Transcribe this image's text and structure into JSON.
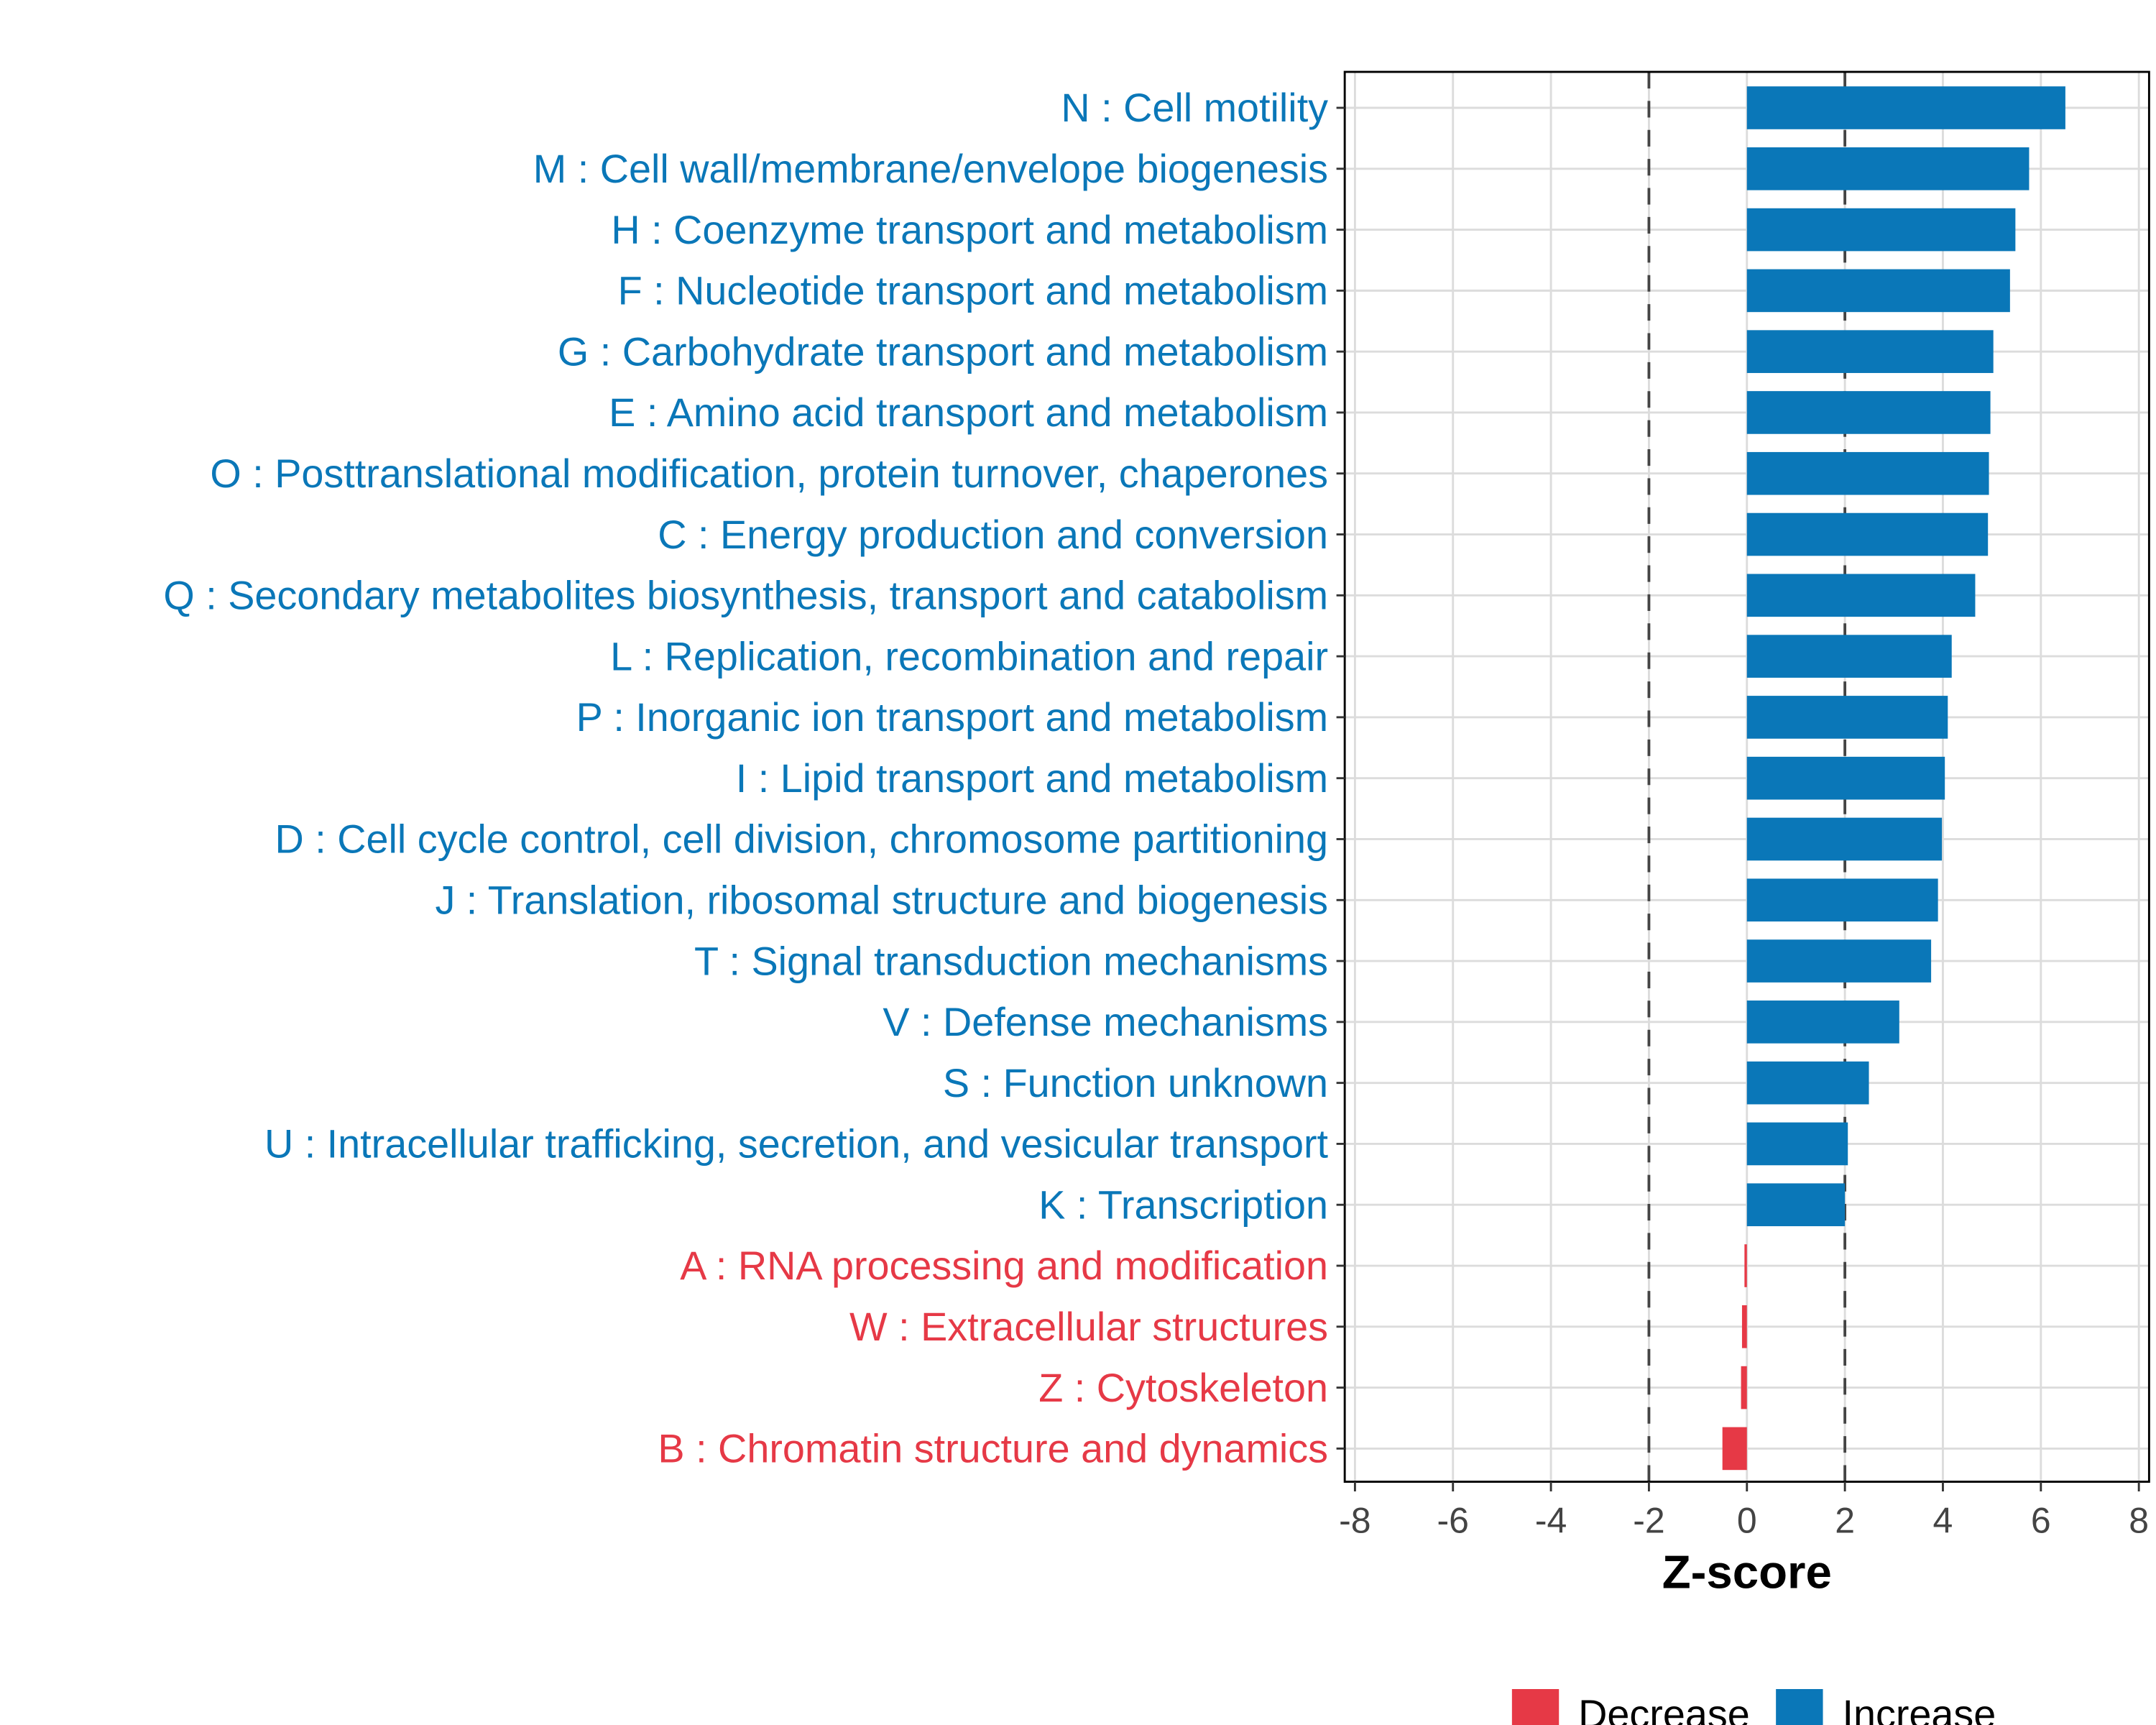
{
  "chart_data": {
    "type": "bar",
    "orientation": "horizontal",
    "title": "",
    "xlabel": "Z-score",
    "ylabel": "",
    "xlim": [
      -8.2,
      8.2
    ],
    "xticks": [
      -8,
      -6,
      -4,
      -2,
      0,
      2,
      4,
      6,
      8
    ],
    "reference_lines": [
      -2,
      2
    ],
    "grid": true,
    "legend": {
      "placement": "bottom",
      "entries": [
        {
          "label": "Decrease",
          "color": "#e63946"
        },
        {
          "label": "Increase",
          "color": "#0a77b8"
        }
      ]
    },
    "categories": [
      "N : Cell motility",
      "M : Cell wall/membrane/envelope biogenesis",
      "H : Coenzyme transport and metabolism",
      "F : Nucleotide transport and metabolism",
      "G : Carbohydrate transport and metabolism",
      "E : Amino acid transport and metabolism",
      "O : Posttranslational modification, protein turnover, chaperones",
      "C : Energy production and conversion",
      "Q : Secondary metabolites biosynthesis, transport and catabolism",
      "L : Replication, recombination and repair",
      "P : Inorganic ion transport and metabolism",
      "I : Lipid transport and metabolism",
      "D : Cell cycle control, cell division, chromosome partitioning",
      "J : Translation, ribosomal structure and biogenesis",
      "T : Signal transduction mechanisms",
      "V : Defense mechanisms",
      "S : Function unknown",
      "U : Intracellular trafficking, secretion, and vesicular transport",
      "K : Transcription",
      "A : RNA processing and modification",
      "W : Extracellular structures",
      "Z : Cytoskeleton",
      "B : Chromatin structure and dynamics"
    ],
    "values": [
      6.5,
      5.76,
      5.48,
      5.37,
      5.03,
      4.97,
      4.94,
      4.92,
      4.66,
      4.18,
      4.1,
      4.04,
      3.98,
      3.9,
      3.76,
      3.11,
      2.49,
      2.06,
      2.0,
      -0.05,
      -0.1,
      -0.12,
      -0.5
    ]
  }
}
